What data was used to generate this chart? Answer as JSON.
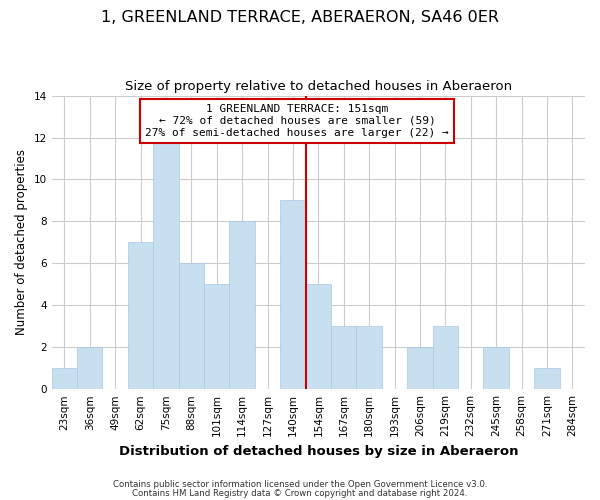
{
  "title": "1, GREENLAND TERRACE, ABERAERON, SA46 0ER",
  "subtitle": "Size of property relative to detached houses in Aberaeron",
  "xlabel": "Distribution of detached houses by size in Aberaeron",
  "ylabel": "Number of detached properties",
  "footer_lines": [
    "Contains HM Land Registry data © Crown copyright and database right 2024.",
    "Contains public sector information licensed under the Open Government Licence v3.0."
  ],
  "bin_labels": [
    "23sqm",
    "36sqm",
    "49sqm",
    "62sqm",
    "75sqm",
    "88sqm",
    "101sqm",
    "114sqm",
    "127sqm",
    "140sqm",
    "154sqm",
    "167sqm",
    "180sqm",
    "193sqm",
    "206sqm",
    "219sqm",
    "232sqm",
    "245sqm",
    "258sqm",
    "271sqm",
    "284sqm"
  ],
  "bar_heights": [
    1,
    2,
    0,
    7,
    12,
    6,
    5,
    8,
    0,
    9,
    5,
    3,
    3,
    0,
    2,
    3,
    0,
    2,
    0,
    1,
    0
  ],
  "bar_color": "#c8dff0",
  "bar_edge_color": "#a8c8e8",
  "property_line_color": "#cc0000",
  "property_line_idx": 10,
  "annotation_box_text": "1 GREENLAND TERRACE: 151sqm\n← 72% of detached houses are smaller (59)\n27% of semi-detached houses are larger (22) →",
  "ylim": [
    0,
    14
  ],
  "yticks": [
    0,
    2,
    4,
    6,
    8,
    10,
    12,
    14
  ],
  "grid_color": "#cccccc",
  "background_color": "#ffffff",
  "title_fontsize": 11.5,
  "subtitle_fontsize": 9.5,
  "ylabel_fontsize": 8.5,
  "xlabel_fontsize": 9.5,
  "tick_fontsize": 7.5,
  "annotation_fontsize": 8.0,
  "footer_fontsize": 6.2
}
